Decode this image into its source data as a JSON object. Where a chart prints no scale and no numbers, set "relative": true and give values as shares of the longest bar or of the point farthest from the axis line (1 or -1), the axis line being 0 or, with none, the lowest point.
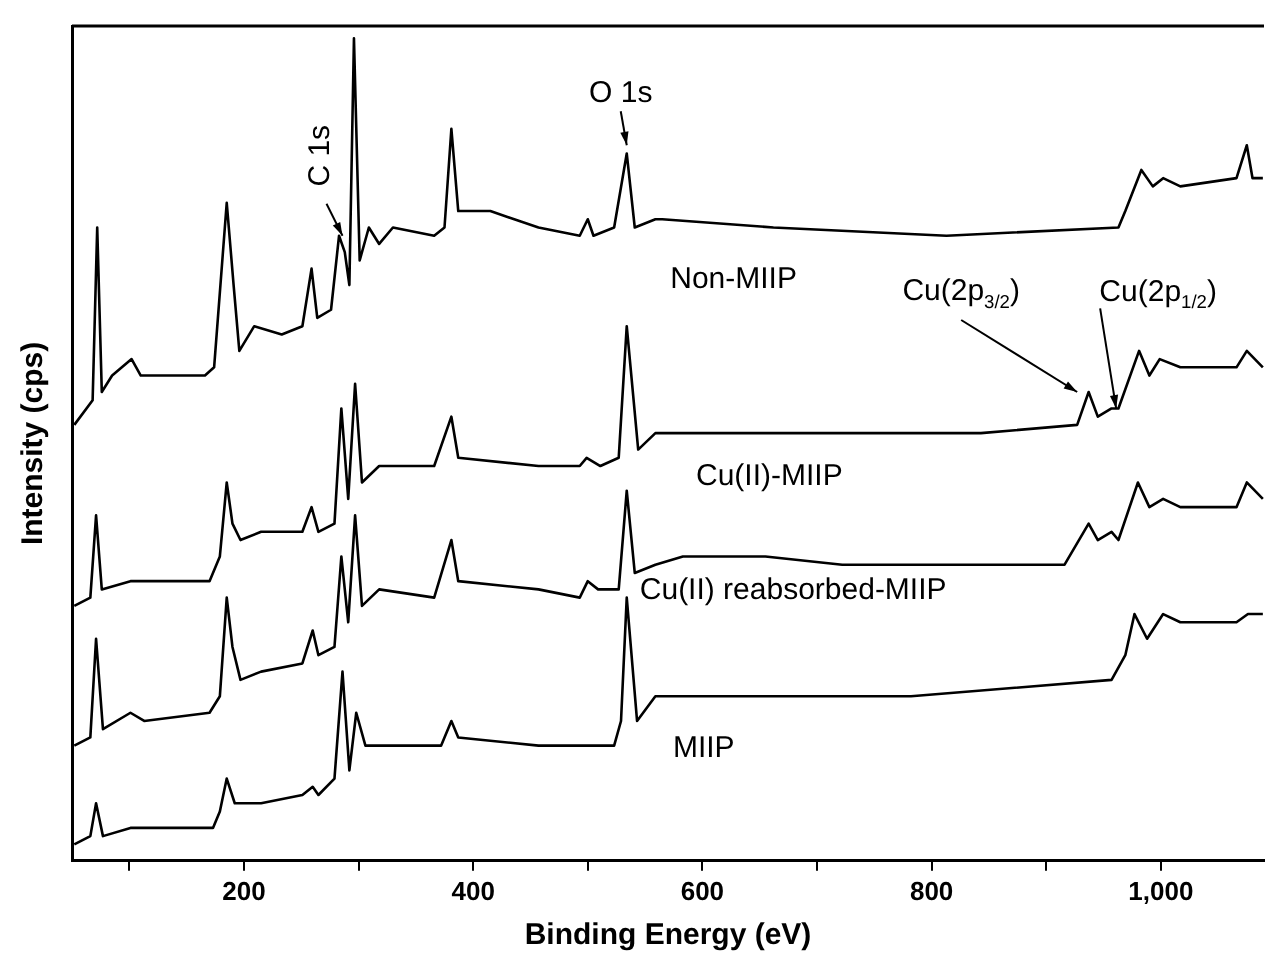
{
  "chart_data": {
    "type": "line",
    "relative": true,
    "xlabel": "Binding Energy (eV)",
    "ylabel": "Intensity (cps)",
    "xlim": [
      50,
      1090
    ],
    "xticks": [
      {
        "value": 100,
        "label": null
      },
      200,
      {
        "value": 300,
        "label": null
      },
      400,
      {
        "value": 500,
        "label": null
      },
      600,
      {
        "value": 700,
        "label": null
      },
      800,
      {
        "value": 900,
        "label": null
      },
      {
        "value": 1000,
        "label": "1,000"
      }
    ],
    "series": [
      {
        "name": "Non-MIIP",
        "color": "#000000",
        "x": [
          52,
          68,
          72,
          76,
          85,
          102,
          110,
          130,
          166,
          174,
          185,
          191,
          196,
          209,
          233,
          251,
          259,
          264,
          276,
          283,
          288,
          292,
          296,
          301,
          309,
          318,
          330,
          366,
          375,
          381,
          387,
          415,
          457,
          493,
          500,
          505,
          523,
          534,
          541,
          559,
          565,
          662,
          813,
          963,
          969,
          983,
          993,
          1002,
          1017,
          1066,
          1075,
          1080,
          1089
        ],
        "values": [
          0.53,
          0.56,
          0.77,
          0.57,
          0.59,
          0.61,
          0.59,
          0.59,
          0.59,
          0.6,
          0.8,
          0.7,
          0.62,
          0.65,
          0.64,
          0.65,
          0.72,
          0.66,
          0.67,
          0.76,
          0.74,
          0.7,
          1,
          0.73,
          0.77,
          0.75,
          0.77,
          0.76,
          0.77,
          0.89,
          0.79,
          0.79,
          0.77,
          0.76,
          0.78,
          0.76,
          0.77,
          0.86,
          0.77,
          0.78,
          0.78,
          0.77,
          0.76,
          0.77,
          0.79,
          0.84,
          0.82,
          0.83,
          0.82,
          0.83,
          0.87,
          0.83,
          0.83
        ]
      },
      {
        "name": "Cu(II)-MIIP",
        "color": "#000000",
        "x": [
          52,
          66,
          71,
          76,
          101,
          113,
          170,
          179,
          185,
          190,
          197,
          215,
          251,
          259,
          265,
          279,
          285,
          291,
          297,
          303,
          318,
          366,
          381,
          387,
          457,
          493,
          499,
          511,
          527,
          534,
          544,
          559,
          662,
          843,
          927,
          937,
          945,
          957,
          963,
          981,
          990,
          999,
          1017,
          1066,
          1075,
          1089
        ],
        "values": [
          0.31,
          0.32,
          0.42,
          0.33,
          0.34,
          0.34,
          0.34,
          0.37,
          0.46,
          0.41,
          0.39,
          0.4,
          0.4,
          0.43,
          0.4,
          0.41,
          0.55,
          0.44,
          0.58,
          0.46,
          0.48,
          0.48,
          0.54,
          0.49,
          0.48,
          0.48,
          0.49,
          0.48,
          0.49,
          0.65,
          0.5,
          0.52,
          0.52,
          0.52,
          0.53,
          0.57,
          0.54,
          0.55,
          0.55,
          0.62,
          0.59,
          0.61,
          0.6,
          0.6,
          0.62,
          0.6
        ]
      },
      {
        "name": "Cu(II) reabsorbed-MIIP",
        "color": "#000000",
        "x": [
          52,
          66,
          71,
          77,
          101,
          113,
          170,
          179,
          185,
          190,
          197,
          215,
          251,
          260,
          265,
          279,
          285,
          291,
          297,
          303,
          318,
          366,
          381,
          387,
          457,
          493,
          500,
          509,
          527,
          534,
          541,
          559,
          583,
          655,
          722,
          916,
          937,
          945,
          957,
          963,
          980,
          990,
          1002,
          1017,
          1066,
          1075,
          1089
        ],
        "values": [
          0.14,
          0.15,
          0.27,
          0.16,
          0.18,
          0.17,
          0.18,
          0.2,
          0.32,
          0.26,
          0.22,
          0.23,
          0.24,
          0.28,
          0.25,
          0.26,
          0.37,
          0.29,
          0.42,
          0.31,
          0.33,
          0.32,
          0.39,
          0.34,
          0.33,
          0.32,
          0.34,
          0.33,
          0.33,
          0.45,
          0.35,
          0.36,
          0.37,
          0.37,
          0.36,
          0.36,
          0.41,
          0.39,
          0.4,
          0.39,
          0.46,
          0.43,
          0.44,
          0.43,
          0.43,
          0.46,
          0.44
        ]
      },
      {
        "name": "MIIP",
        "color": "#000000",
        "x": [
          52,
          66,
          71,
          77,
          101,
          113,
          173,
          179,
          185,
          192,
          215,
          251,
          260,
          265,
          279,
          286,
          292,
          298,
          306,
          336,
          372,
          381,
          387,
          457,
          523,
          529,
          534,
          543,
          559,
          601,
          782,
          957,
          969,
          977,
          988,
          1002,
          1017,
          1066,
          1076,
          1089
        ],
        "values": [
          0.02,
          0.03,
          0.07,
          0.03,
          0.04,
          0.04,
          0.04,
          0.06,
          0.1,
          0.07,
          0.07,
          0.08,
          0.09,
          0.08,
          0.1,
          0.23,
          0.11,
          0.18,
          0.14,
          0.14,
          0.14,
          0.17,
          0.15,
          0.14,
          0.14,
          0.17,
          0.32,
          0.17,
          0.2,
          0.2,
          0.2,
          0.22,
          0.25,
          0.3,
          0.27,
          0.3,
          0.29,
          0.29,
          0.3,
          0.3
        ]
      }
    ],
    "annotations": [
      {
        "text": "C 1s",
        "x": 286,
        "y": 0.76
      },
      {
        "text": "O 1s",
        "x": 534,
        "y": 0.87
      },
      {
        "text": "Cu(2p$_{3/2}$)",
        "x": 927,
        "y": 0.57
      },
      {
        "text": "Cu(2p$_{1/2}$)",
        "x": 961,
        "y": 0.55
      }
    ]
  }
}
